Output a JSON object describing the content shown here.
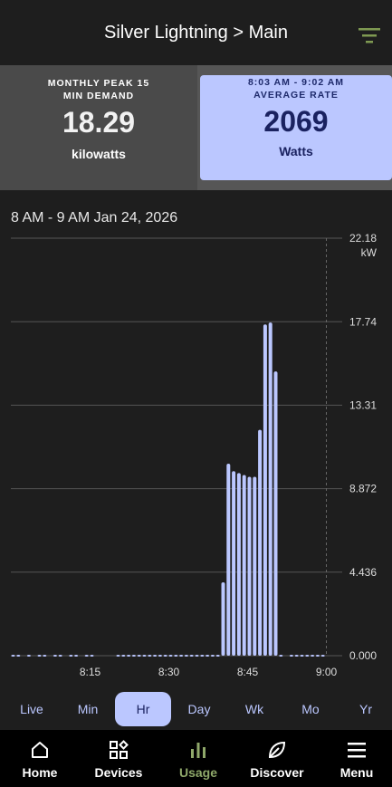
{
  "header": {
    "title": "Silver Lightning > Main",
    "filter_icon": "filter-icon"
  },
  "cards": {
    "left": {
      "label": "MONTHLY PEAK 15 MIN DEMAND",
      "value": "18.29",
      "unit": "kilowatts"
    },
    "right": {
      "label_time": "8:03 AM - 9:02 AM",
      "label": "AVERAGE RATE",
      "value": "2069",
      "unit": "Watts"
    }
  },
  "chart_title": "8 AM - 9 AM Jan 24, 2026",
  "chart_data": {
    "type": "bar",
    "x_unit": "minute",
    "x": [
      0,
      1,
      2,
      3,
      4,
      5,
      6,
      7,
      8,
      9,
      10,
      11,
      12,
      13,
      14,
      15,
      16,
      17,
      18,
      19,
      20,
      21,
      22,
      23,
      24,
      25,
      26,
      27,
      28,
      29,
      30,
      31,
      32,
      33,
      34,
      35,
      36,
      37,
      38,
      39,
      40,
      41,
      42,
      43,
      44,
      45,
      46,
      47,
      48,
      49,
      50,
      51,
      52,
      53,
      54,
      55,
      56,
      57,
      58,
      59
    ],
    "values": [
      0.05,
      0.05,
      0,
      0.05,
      0,
      0.05,
      0.05,
      0,
      0.05,
      0.05,
      0,
      0.05,
      0.05,
      0,
      0.05,
      0.05,
      0,
      0,
      0,
      0,
      0.05,
      0.05,
      0.05,
      0.05,
      0.05,
      0.05,
      0.05,
      0.05,
      0.05,
      0.05,
      0.05,
      0.05,
      0.05,
      0.05,
      0.05,
      0.05,
      0.05,
      0.05,
      0.05,
      0.05,
      3.9,
      10.2,
      9.8,
      9.7,
      9.6,
      9.5,
      9.5,
      12.0,
      17.6,
      17.7,
      15.1,
      0.05,
      0,
      0.05,
      0.05,
      0.05,
      0.05,
      0.05,
      0.05,
      0.05
    ],
    "ylim": [
      0,
      22.18
    ],
    "y_ticks": [
      "0.000",
      "4.436",
      "8.872",
      "13.31",
      "17.74",
      "22.18"
    ],
    "y_unit": "kW",
    "x_ticks": [
      "8:15",
      "8:30",
      "8:45",
      "9:00"
    ],
    "grid": true,
    "bar_color": "#bbc7ff"
  },
  "periods": [
    "Live",
    "Min",
    "Hr",
    "Day",
    "Wk",
    "Mo",
    "Yr"
  ],
  "active_period": "Hr",
  "nav": [
    {
      "label": "Home",
      "icon": "home-icon"
    },
    {
      "label": "Devices",
      "icon": "devices-icon"
    },
    {
      "label": "Usage",
      "icon": "usage-icon"
    },
    {
      "label": "Discover",
      "icon": "leaf-icon"
    },
    {
      "label": "Menu",
      "icon": "menu-icon"
    }
  ],
  "colors": {
    "accent": "#bbc7ff",
    "active_nav": "#8fa86a",
    "filter_icon": "#7f9a52"
  }
}
